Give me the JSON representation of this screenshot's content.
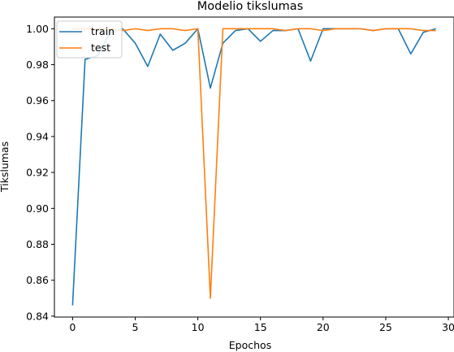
{
  "chart_data": {
    "type": "line",
    "title": "Modelio tikslumas",
    "xlabel": "Epochos",
    "ylabel": "Tikslumas",
    "xlim": [
      -1.45,
      30.45
    ],
    "ylim": [
      0.8395,
      1.0065
    ],
    "xticks": [
      0,
      5,
      10,
      15,
      20,
      25,
      30
    ],
    "xtick_labels": [
      "0",
      "5",
      "10",
      "15",
      "20",
      "25",
      "30"
    ],
    "yticks": [
      0.84,
      0.86,
      0.88,
      0.9,
      0.92,
      0.94,
      0.96,
      0.98,
      1.0
    ],
    "ytick_labels": [
      "0.84",
      "0.86",
      "0.88",
      "0.90",
      "0.92",
      "0.94",
      "0.96",
      "0.98",
      "1.00"
    ],
    "grid": false,
    "legend_position": "upper left",
    "x": [
      0,
      1,
      2,
      3,
      4,
      5,
      6,
      7,
      8,
      9,
      10,
      11,
      12,
      13,
      14,
      15,
      16,
      17,
      18,
      19,
      20,
      21,
      22,
      23,
      24,
      25,
      26,
      27,
      28,
      29
    ],
    "series": [
      {
        "name": "train",
        "color": "#1f77b4",
        "values": [
          0.846,
          0.983,
          0.985,
          0.998,
          1.0,
          0.992,
          0.979,
          0.997,
          0.988,
          0.992,
          1.0,
          0.967,
          0.992,
          0.999,
          1.0,
          0.993,
          0.999,
          0.999,
          1.0,
          0.982,
          1.0,
          1.0,
          1.0,
          1.0,
          0.999,
          1.0,
          1.0,
          0.986,
          0.998,
          1.0
        ]
      },
      {
        "name": "test",
        "color": "#ff7f0e",
        "values": [
          1.0,
          1.0,
          1.0,
          1.0,
          0.999,
          1.0,
          0.999,
          1.0,
          1.0,
          0.999,
          1.0,
          0.85,
          1.0,
          1.0,
          1.0,
          1.0,
          1.0,
          0.999,
          1.0,
          1.0,
          0.999,
          1.0,
          1.0,
          1.0,
          0.999,
          1.0,
          1.0,
          1.0,
          0.999,
          0.999
        ]
      }
    ]
  }
}
